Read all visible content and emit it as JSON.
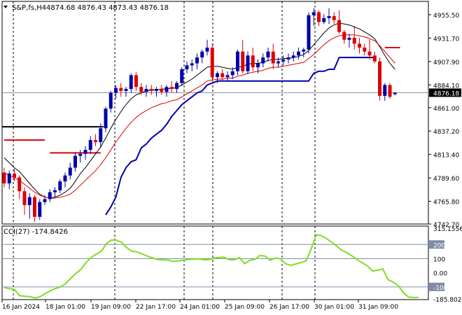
{
  "chart_data": [
    {
      "type": "candlestick",
      "title": "S&P,fs,H4",
      "ohlc_label": "4874.68 4876.43 4873.43 4876.18",
      "current_price": 4876.18,
      "ylim": [
        4742.7,
        4969.0
      ],
      "y_ticks": [
        "4955.50",
        "4931.70",
        "4907.90",
        "4884.10",
        "4861.00",
        "4837.20",
        "4813.40",
        "4789.60",
        "4765.80",
        "4742.70"
      ],
      "x_labels": [
        "16 Jan 2024",
        "18 Jan 01:00",
        "19 Jan 09:00",
        "22 Jan 17:00",
        "24 Jan 01:00",
        "25 Jan 09:00",
        "26 Jan 17:00",
        "30 Jan 01:00",
        "31 Jan 09:00"
      ],
      "candles": [
        [
          4795,
          4800,
          4780,
          4784
        ],
        [
          4784,
          4797,
          4778,
          4794
        ],
        [
          4794,
          4799,
          4786,
          4790
        ],
        [
          4790,
          4792,
          4768,
          4776
        ],
        [
          4776,
          4780,
          4752,
          4762
        ],
        [
          4762,
          4774,
          4748,
          4770
        ],
        [
          4770,
          4772,
          4745,
          4750
        ],
        [
          4750,
          4768,
          4747,
          4765
        ],
        [
          4765,
          4772,
          4762,
          4768
        ],
        [
          4768,
          4778,
          4765,
          4775
        ],
        [
          4775,
          4780,
          4770,
          4777
        ],
        [
          4777,
          4788,
          4774,
          4786
        ],
        [
          4786,
          4795,
          4780,
          4792
        ],
        [
          4792,
          4805,
          4788,
          4800
        ],
        [
          4800,
          4815,
          4796,
          4812
        ],
        [
          4812,
          4818,
          4805,
          4814
        ],
        [
          4814,
          4822,
          4808,
          4818
        ],
        [
          4818,
          4832,
          4814,
          4828
        ],
        [
          4828,
          4834,
          4822,
          4826
        ],
        [
          4826,
          4845,
          4820,
          4840
        ],
        [
          4840,
          4862,
          4836,
          4860
        ],
        [
          4860,
          4878,
          4856,
          4876
        ],
        [
          4876,
          4884,
          4870,
          4881
        ],
        [
          4881,
          4886,
          4872,
          4878
        ],
        [
          4878,
          4882,
          4872,
          4880
        ],
        [
          4880,
          4896,
          4876,
          4894
        ],
        [
          4894,
          4897,
          4878,
          4882
        ],
        [
          4882,
          4886,
          4874,
          4877
        ],
        [
          4877,
          4884,
          4872,
          4880
        ],
        [
          4880,
          4884,
          4874,
          4878
        ],
        [
          4878,
          4882,
          4872,
          4880
        ],
        [
          4880,
          4884,
          4874,
          4877
        ],
        [
          4877,
          4884,
          4872,
          4882
        ],
        [
          4882,
          4888,
          4876,
          4880
        ],
        [
          4880,
          4888,
          4876,
          4886
        ],
        [
          4886,
          4902,
          4883,
          4900
        ],
        [
          4900,
          4908,
          4896,
          4904
        ],
        [
          4904,
          4910,
          4898,
          4906
        ],
        [
          4906,
          4916,
          4900,
          4912
        ],
        [
          4912,
          4920,
          4906,
          4918
        ],
        [
          4918,
          4930,
          4914,
          4922
        ],
        [
          4922,
          4926,
          4888,
          4892
        ],
        [
          4892,
          4898,
          4886,
          4896
        ],
        [
          4896,
          4900,
          4888,
          4892
        ],
        [
          4892,
          4898,
          4888,
          4894
        ],
        [
          4894,
          4902,
          4890,
          4898
        ],
        [
          4898,
          4920,
          4894,
          4918
        ],
        [
          4918,
          4930,
          4896,
          4898
        ],
        [
          4898,
          4918,
          4895,
          4914
        ],
        [
          4914,
          4922,
          4898,
          4902
        ],
        [
          4902,
          4910,
          4896,
          4906
        ],
        [
          4906,
          4916,
          4902,
          4912
        ],
        [
          4912,
          4922,
          4908,
          4918
        ],
        [
          4918,
          4926,
          4900,
          4906
        ],
        [
          4906,
          4912,
          4902,
          4908
        ],
        [
          4908,
          4914,
          4904,
          4910
        ],
        [
          4910,
          4916,
          4906,
          4912
        ],
        [
          4912,
          4918,
          4908,
          4914
        ],
        [
          4914,
          4922,
          4910,
          4918
        ],
        [
          4918,
          4922,
          4912,
          4920
        ],
        [
          4920,
          4958,
          4916,
          4955
        ],
        [
          4955,
          4962,
          4944,
          4958
        ],
        [
          4958,
          4960,
          4944,
          4948
        ],
        [
          4948,
          4956,
          4946,
          4952
        ],
        [
          4952,
          4962,
          4946,
          4954
        ],
        [
          4954,
          4958,
          4946,
          4950
        ],
        [
          4950,
          4960,
          4936,
          4938
        ],
        [
          4938,
          4940,
          4926,
          4930
        ],
        [
          4930,
          4936,
          4922,
          4932
        ],
        [
          4932,
          4944,
          4920,
          4926
        ],
        [
          4926,
          4932,
          4916,
          4922
        ],
        [
          4922,
          4926,
          4914,
          4918
        ],
        [
          4918,
          4930,
          4910,
          4914
        ],
        [
          4914,
          4918,
          4906,
          4908
        ],
        [
          4908,
          4912,
          4868,
          4873
        ],
        [
          4873,
          4886,
          4868,
          4884
        ],
        [
          4884,
          4886,
          4870,
          4872
        ],
        [
          4874.68,
          4876.43,
          4873.43,
          4876.18
        ]
      ],
      "buy_stop_line": 4841.5,
      "red_stop_segments": [
        [
          0,
          8,
          4828
        ],
        [
          9,
          19,
          4815
        ],
        [
          75,
          78,
          4922
        ]
      ],
      "series": [
        {
          "name": "",
          "color": "#000000",
          "values": [
            4810,
            4805,
            4800,
            4796,
            4790,
            4784,
            4778,
            4773,
            4770,
            4769,
            4770,
            4772,
            4775,
            4779,
            4786,
            4794,
            4800,
            4807,
            4814,
            4821,
            4830,
            4840,
            4849,
            4857,
            4864,
            4870,
            4874,
            4876,
            4878,
            4879,
            4879,
            4880,
            4880,
            4881,
            4881,
            4884,
            4887,
            4890,
            4894,
            4898,
            4902,
            4903,
            4903,
            4902,
            4901,
            4900,
            4902,
            4903,
            4905,
            4906,
            4906,
            4907,
            4909,
            4910,
            4910,
            4911,
            4911,
            4912,
            4913,
            4915,
            4919,
            4925,
            4931,
            4937,
            4942,
            4945,
            4947,
            4946,
            4945,
            4943,
            4941,
            4938,
            4935,
            4931,
            4923,
            4914,
            4906,
            4900
          ]
        },
        {
          "name": "",
          "color": "#dd0000",
          "values": [
            4795,
            4792,
            4790,
            4787,
            4783,
            4779,
            4775,
            4772,
            4770,
            4769,
            4769,
            4770,
            4771,
            4773,
            4777,
            4782,
            4787,
            4792,
            4797,
            4803,
            4810,
            4818,
            4826,
            4833,
            4840,
            4846,
            4851,
            4855,
            4858,
            4861,
            4863,
            4865,
            4866,
            4868,
            4869,
            4872,
            4875,
            4878,
            4881,
            4884,
            4888,
            4889,
            4890,
            4890,
            4891,
            4891,
            4893,
            4894,
            4896,
            4897,
            4898,
            4899,
            4901,
            4902,
            4902,
            4903,
            4904,
            4905,
            4906,
            4907,
            4911,
            4915,
            4920,
            4925,
            4929,
            4932,
            4934,
            4935,
            4935,
            4935,
            4934,
            4933,
            4931,
            4929,
            4924,
            4918,
            4912,
            4906
          ]
        },
        {
          "name": "",
          "color": "#0000aa",
          "values": [
            null,
            null,
            null,
            null,
            null,
            null,
            null,
            null,
            null,
            null,
            null,
            null,
            null,
            null,
            null,
            null,
            null,
            null,
            null,
            null,
            4752,
            4760,
            4770,
            4790,
            4800,
            4806,
            4808,
            4820,
            4824,
            4830,
            4834,
            4838,
            4844,
            4852,
            4858,
            4864,
            4868,
            4872,
            4876,
            4878,
            4884,
            4886,
            4888,
            4888,
            4888,
            4888,
            4888,
            4888,
            4888,
            4888,
            4888,
            4888,
            4888,
            4888,
            4888,
            4888,
            4888,
            4888,
            4888,
            4888,
            4888,
            4896,
            4898,
            4898,
            4900,
            4900,
            4912,
            4912,
            4912,
            4912,
            4912,
            4912,
            4912,
            4912,
            null,
            null,
            null,
            null
          ]
        }
      ]
    },
    {
      "type": "line",
      "title": "CCI(27) -174.8426",
      "ylim": [
        -190,
        330
      ],
      "y_ticks": [
        "315.1556",
        "200",
        "100",
        "0.00",
        "-100",
        "-185.8021"
      ],
      "levels": [
        200,
        100,
        -100
      ],
      "series": [
        {
          "name": "CCI(27)",
          "color": "#7fdd20",
          "values": [
            -105,
            -112,
            -118,
            -162,
            -166,
            -168,
            -178,
            -170,
            -148,
            -128,
            -112,
            -100,
            -78,
            -40,
            -6,
            24,
            72,
            108,
            132,
            152,
            208,
            232,
            230,
            214,
            176,
            152,
            148,
            132,
            118,
            104,
            94,
            92,
            90,
            80,
            84,
            88,
            94,
            96,
            98,
            92,
            92,
            104,
            108,
            110,
            92,
            92,
            106,
            64,
            88,
            96,
            122,
            118,
            88,
            104,
            98,
            64,
            52,
            62,
            72,
            84,
            168,
            268,
            262,
            242,
            216,
            188,
            158,
            142,
            118,
            92,
            70,
            48,
            12,
            18,
            28,
            -48,
            -66,
            -90,
            -140,
            -172,
            -175,
            -174.8426
          ]
        }
      ]
    }
  ]
}
